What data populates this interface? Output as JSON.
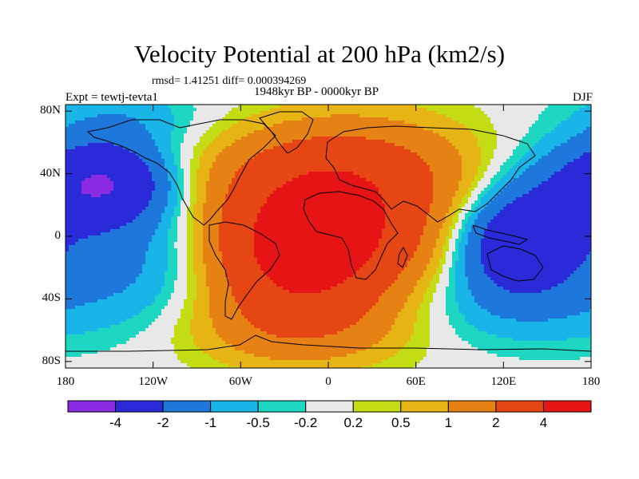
{
  "title": "Velocity Potential at 200 hPa (km2/s)",
  "stats_line": "rmsd= 1.41251 diff= 0.000394269",
  "experiment": "Expt = tewtj-tevta1",
  "period": "1948kyr BP - 0000kyr BP",
  "season": "DJF",
  "lat_ticks": [
    {
      "label": "80N",
      "lat": 80
    },
    {
      "label": "40N",
      "lat": 40
    },
    {
      "label": "0",
      "lat": 0
    },
    {
      "label": "40S",
      "lat": -40
    },
    {
      "label": "80S",
      "lat": -80
    }
  ],
  "lon_ticks": [
    {
      "label": "180",
      "lon": -180
    },
    {
      "label": "120W",
      "lon": -120
    },
    {
      "label": "60W",
      "lon": -60
    },
    {
      "label": "0",
      "lon": 0
    },
    {
      "label": "60E",
      "lon": 60
    },
    {
      "label": "120E",
      "lon": 120
    },
    {
      "label": "180",
      "lon": 180
    }
  ],
  "colorbar": {
    "colors": [
      "#8a2be2",
      "#2a2ad8",
      "#1e78dc",
      "#19b4e8",
      "#1ed7c3",
      "#e8e8e8",
      "#c3dc14",
      "#e6b414",
      "#e68214",
      "#e64614",
      "#e61414"
    ],
    "labels": [
      "-4",
      "-2",
      "-1",
      "-0.5",
      "-0.2",
      "0.2",
      "0.5",
      "1",
      "2",
      "4"
    ]
  },
  "field_centers": [
    {
      "lon": -20,
      "lat": -10,
      "amp": 4.5,
      "sx": 45,
      "sy": 32
    },
    {
      "lon": 20,
      "lat": 20,
      "amp": 2.5,
      "sx": 55,
      "sy": 35
    },
    {
      "lon": 0,
      "lat": 45,
      "amp": 1.0,
      "sx": 70,
      "sy": 20
    },
    {
      "lon": -20,
      "lat": -60,
      "amp": 1.0,
      "sx": 60,
      "sy": 18
    },
    {
      "lon": 130,
      "lat": -5,
      "amp": -3.5,
      "sx": 30,
      "sy": 22
    },
    {
      "lon": -150,
      "lat": 35,
      "amp": -3.0,
      "sx": 30,
      "sy": 18
    },
    {
      "lon": 170,
      "lat": 30,
      "amp": -1.5,
      "sx": 40,
      "sy": 22
    },
    {
      "lon": -130,
      "lat": -15,
      "amp": -1.2,
      "sx": 50,
      "sy": 30
    },
    {
      "lon": 120,
      "lat": -45,
      "amp": -0.8,
      "sx": 60,
      "sy": 20
    },
    {
      "lon": -140,
      "lat": 75,
      "amp": -0.8,
      "sx": 40,
      "sy": 15
    }
  ]
}
